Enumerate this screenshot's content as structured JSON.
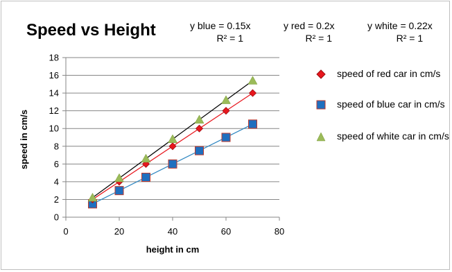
{
  "chart_data": {
    "type": "scatter",
    "title": "Speed vs Height",
    "xlabel": "height in cm",
    "ylabel": "speed in cm/s",
    "xlim": [
      0,
      80
    ],
    "ylim": [
      0,
      18
    ],
    "xticks": [
      0,
      20,
      40,
      60,
      80
    ],
    "yticks": [
      0,
      2,
      4,
      6,
      8,
      10,
      12,
      14,
      16,
      18
    ],
    "grid": "horizontal",
    "legend_position": "right",
    "x": [
      10,
      20,
      30,
      40,
      50,
      60,
      70
    ],
    "series": [
      {
        "name": "speed of red car in cm/s",
        "marker": "diamond",
        "color": "#e8161d",
        "line_color": "#e8161d",
        "values": [
          2,
          4,
          6,
          8,
          10,
          12,
          14
        ],
        "trendline": {
          "label": "y red = 0.2x",
          "r2": "R² = 1",
          "slope": 0.2
        }
      },
      {
        "name": "speed of blue car in cm/s",
        "marker": "square",
        "color": "#1f6fbf",
        "line_color": "#2e86c1",
        "values": [
          1.5,
          3,
          4.5,
          6,
          7.5,
          9,
          10.5
        ],
        "trendline": {
          "label": "y blue = 0.15x",
          "r2": "R² = 1",
          "slope": 0.15
        }
      },
      {
        "name": "speed of white car in cm/s",
        "marker": "triangle",
        "color": "#9bbb59",
        "line_color": "#000000",
        "values": [
          2.2,
          4.4,
          6.6,
          8.8,
          11,
          13.2,
          15.4
        ],
        "trendline": {
          "label": "y white = 0.22x",
          "r2": "R² = 1",
          "slope": 0.22
        }
      }
    ]
  },
  "equations": {
    "blue": {
      "eq": "y blue = 0.15x",
      "r2": "R² = 1"
    },
    "red": {
      "eq": "y red = 0.2x",
      "r2": "R² = 1"
    },
    "white": {
      "eq": "y white = 0.22x",
      "r2": "R² = 1"
    }
  },
  "legend": [
    {
      "label": "speed of red car in cm/s",
      "marker": "diamond"
    },
    {
      "label": "speed of blue car in cm/s",
      "marker": "square"
    },
    {
      "label": "speed of white car in cm/s",
      "marker": "triangle"
    }
  ]
}
